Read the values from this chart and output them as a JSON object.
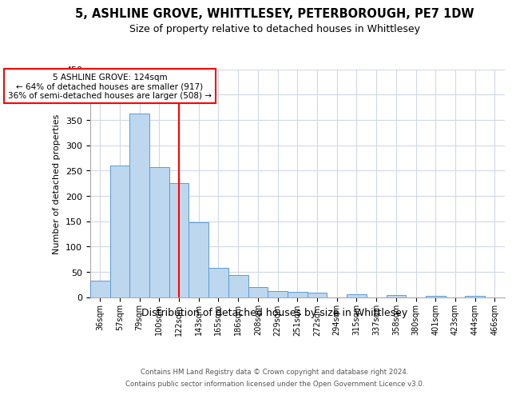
{
  "title": "5, ASHLINE GROVE, WHITTLESEY, PETERBOROUGH, PE7 1DW",
  "subtitle": "Size of property relative to detached houses in Whittlesey",
  "xlabel": "Distribution of detached houses by size in Whittlesey",
  "ylabel": "Number of detached properties",
  "categories": [
    "36sqm",
    "57sqm",
    "79sqm",
    "100sqm",
    "122sqm",
    "143sqm",
    "165sqm",
    "186sqm",
    "208sqm",
    "229sqm",
    "251sqm",
    "272sqm",
    "294sqm",
    "315sqm",
    "337sqm",
    "358sqm",
    "380sqm",
    "401sqm",
    "423sqm",
    "444sqm",
    "466sqm"
  ],
  "values": [
    33,
    259,
    362,
    256,
    225,
    148,
    57,
    44,
    20,
    12,
    11,
    8,
    0,
    6,
    0,
    4,
    0,
    2,
    0,
    3,
    0
  ],
  "bar_color": "#BDD7EE",
  "bar_edge_color": "#5B9BD5",
  "marker_bar_index": 4,
  "marker_line_color": "red",
  "annotation_line1": "5 ASHLINE GROVE: 124sqm",
  "annotation_line2": "← 64% of detached houses are smaller (917)",
  "annotation_line3": "36% of semi-detached houses are larger (508) →",
  "annotation_box_facecolor": "white",
  "annotation_box_edgecolor": "red",
  "footnote1": "Contains HM Land Registry data © Crown copyright and database right 2024.",
  "footnote2": "Contains public sector information licensed under the Open Government Licence v3.0.",
  "ylim": [
    0,
    450
  ],
  "yticks": [
    0,
    50,
    100,
    150,
    200,
    250,
    300,
    350,
    400,
    450
  ],
  "title_fontsize": 10.5,
  "subtitle_fontsize": 9,
  "ylabel_fontsize": 8,
  "xlabel_fontsize": 9,
  "tick_fontsize": 8,
  "xtick_fontsize": 7,
  "background_color": "#FFFFFF",
  "grid_color": "#D0D8E8",
  "footnote_color": "#555555"
}
